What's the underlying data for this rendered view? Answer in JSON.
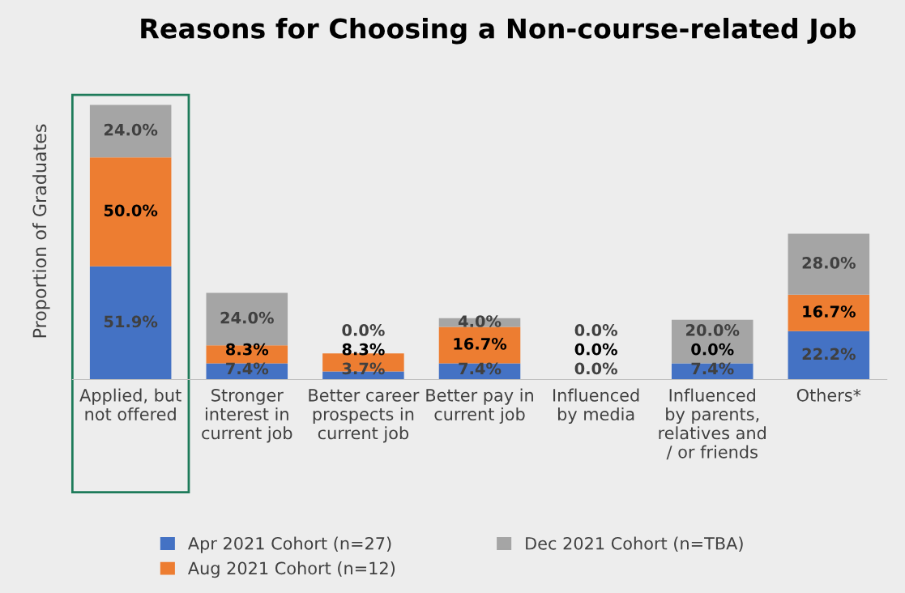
{
  "chart_data": {
    "type": "bar",
    "stacked": true,
    "title": "Reasons for Choosing a Non-course-related Job",
    "ylabel": "Proportion of Graduates",
    "categories": [
      "Applied, but\nnot offered",
      "Stronger\ninterest in\ncurrent job",
      "Better career\nprospects in\ncurrent job",
      "Better pay in\ncurrent job",
      "Influenced\nby media",
      "Influenced\nby parents,\nrelatives and\n/ or friends",
      "Others*"
    ],
    "series": [
      {
        "name": "Apr 2021 Cohort (n=27)",
        "color": "#4472c4",
        "values": [
          51.9,
          7.4,
          3.7,
          7.4,
          0.0,
          7.4,
          22.2
        ],
        "value_labels": [
          "51.9%",
          "7.4%",
          "3.7%",
          "7.4%",
          "0.0%",
          "7.4%",
          "22.2%"
        ]
      },
      {
        "name": "Aug 2021 Cohort (n=12)",
        "color": "#ed7d31",
        "values": [
          50.0,
          8.3,
          8.3,
          16.7,
          0.0,
          0.0,
          16.7
        ],
        "value_labels": [
          "50.0%",
          "8.3%",
          "8.3%",
          "16.7%",
          "0.0%",
          "0.0%",
          "16.7%"
        ]
      },
      {
        "name": "Dec 2021 Cohort (n=TBA)",
        "color": "#a5a5a5",
        "values": [
          24.0,
          24.0,
          0.0,
          4.0,
          0.0,
          20.0,
          28.0
        ],
        "value_labels": [
          "24.0%",
          "24.0%",
          "0.0%",
          "4.0%",
          "0.0%",
          "20.0%",
          "28.0%"
        ]
      }
    ],
    "legend": "bottom",
    "grid": false
  }
}
